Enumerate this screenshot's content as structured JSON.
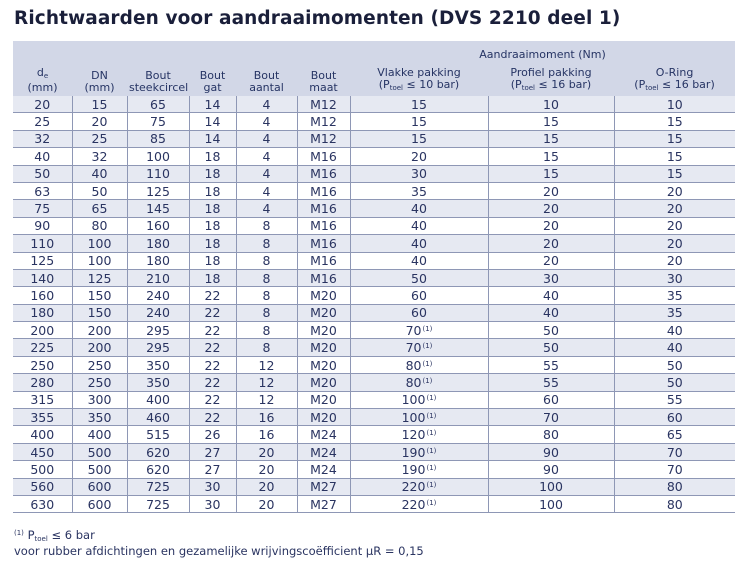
{
  "title": "Richtwaarden voor aandraaimomenten (DVS 2210 deel 1)",
  "header": {
    "group_label": "Aandraaimoment (Nm)",
    "de_main": "d",
    "de_sub": "e",
    "de_unit": "(mm)",
    "dn_main": "DN",
    "dn_unit": "(mm)",
    "bout_steekcircel_1": "Bout",
    "bout_steekcircel_2": "steekcircel",
    "bout_gat_1": "Bout",
    "bout_gat_2": "gat",
    "bout_aantal_1": "Bout",
    "bout_aantal_2": "aantal",
    "bout_maat_1": "Bout",
    "bout_maat_2": "maat",
    "vlakke_1": "Vlakke pakking",
    "profiel_1": "Profiel pakking",
    "oring_1": "O-Ring",
    "p_open": "(P",
    "p_sub": "toel",
    "vlakke_p": " ≤ 10 bar)",
    "profiel_p": " ≤ 16 bar)",
    "oring_p": " ≤ 16 bar)"
  },
  "rows": [
    [
      "20",
      "15",
      "65",
      "14",
      "4",
      "M12",
      "15",
      "",
      "10",
      "10"
    ],
    [
      "25",
      "20",
      "75",
      "14",
      "4",
      "M12",
      "15",
      "",
      "15",
      "15"
    ],
    [
      "32",
      "25",
      "85",
      "14",
      "4",
      "M12",
      "15",
      "",
      "15",
      "15"
    ],
    [
      "40",
      "32",
      "100",
      "18",
      "4",
      "M16",
      "20",
      "",
      "15",
      "15"
    ],
    [
      "50",
      "40",
      "110",
      "18",
      "4",
      "M16",
      "30",
      "",
      "15",
      "15"
    ],
    [
      "63",
      "50",
      "125",
      "18",
      "4",
      "M16",
      "35",
      "",
      "20",
      "20"
    ],
    [
      "75",
      "65",
      "145",
      "18",
      "4",
      "M16",
      "40",
      "",
      "20",
      "20"
    ],
    [
      "90",
      "80",
      "160",
      "18",
      "8",
      "M16",
      "40",
      "",
      "20",
      "20"
    ],
    [
      "110",
      "100",
      "180",
      "18",
      "8",
      "M16",
      "40",
      "",
      "20",
      "20"
    ],
    [
      "125",
      "100",
      "180",
      "18",
      "8",
      "M16",
      "40",
      "",
      "20",
      "20"
    ],
    [
      "140",
      "125",
      "210",
      "18",
      "8",
      "M16",
      "50",
      "",
      "30",
      "30"
    ],
    [
      "160",
      "150",
      "240",
      "22",
      "8",
      "M20",
      "60",
      "",
      "40",
      "35"
    ],
    [
      "180",
      "150",
      "240",
      "22",
      "8",
      "M20",
      "60",
      "",
      "40",
      "35"
    ],
    [
      "200",
      "200",
      "295",
      "22",
      "8",
      "M20",
      "70",
      "(1)",
      "50",
      "40"
    ],
    [
      "225",
      "200",
      "295",
      "22",
      "8",
      "M20",
      "70",
      "(1)",
      "50",
      "40"
    ],
    [
      "250",
      "250",
      "350",
      "22",
      "12",
      "M20",
      "80",
      "(1)",
      "55",
      "50"
    ],
    [
      "280",
      "250",
      "350",
      "22",
      "12",
      "M20",
      "80",
      "(1)",
      "55",
      "50"
    ],
    [
      "315",
      "300",
      "400",
      "22",
      "12",
      "M20",
      "100",
      "(1)",
      "60",
      "55"
    ],
    [
      "355",
      "350",
      "460",
      "22",
      "16",
      "M20",
      "100",
      "(1)",
      "70",
      "60"
    ],
    [
      "400",
      "400",
      "515",
      "26",
      "16",
      "M24",
      "120",
      "(1)",
      "80",
      "65"
    ],
    [
      "450",
      "500",
      "620",
      "27",
      "20",
      "M24",
      "190",
      "(1)",
      "90",
      "70"
    ],
    [
      "500",
      "500",
      "620",
      "27",
      "20",
      "M24",
      "190",
      "(1)",
      "90",
      "70"
    ],
    [
      "560",
      "600",
      "725",
      "30",
      "20",
      "M27",
      "220",
      "(1)",
      "100",
      "80"
    ],
    [
      "630",
      "600",
      "725",
      "30",
      "20",
      "M27",
      "220",
      "(1)",
      "100",
      "80"
    ]
  ],
  "footnotes": {
    "marker": "(1)",
    "p_letter": "P",
    "p_sub": "toel",
    "p_text": " ≤ 6 bar",
    "line2": "voor rubber afdichtingen en gezamelijke wrijvingscoëfficient μR = 0,15"
  }
}
